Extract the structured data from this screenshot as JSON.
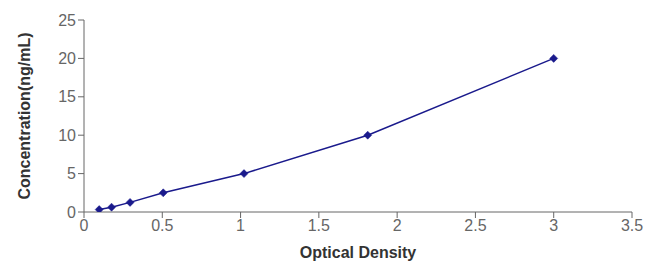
{
  "chart_data": {
    "type": "line",
    "x": [
      0.097,
      0.176,
      0.294,
      0.506,
      1.022,
      1.812,
      3.0
    ],
    "values": [
      0.312,
      0.625,
      1.25,
      2.5,
      5.0,
      10.0,
      20.0
    ],
    "color": "#1a1a8c",
    "marker": "diamond",
    "line_style": "solid",
    "xlabel": "Optical Density",
    "ylabel": "Concentration(ng/mL)",
    "xlim": [
      0,
      3.5
    ],
    "ylim": [
      0,
      25
    ],
    "xticks": [
      0,
      0.5,
      1,
      1.5,
      2,
      2.5,
      3,
      3.5
    ],
    "yticks": [
      0,
      5,
      10,
      15,
      20,
      25
    ],
    "grid": false
  }
}
